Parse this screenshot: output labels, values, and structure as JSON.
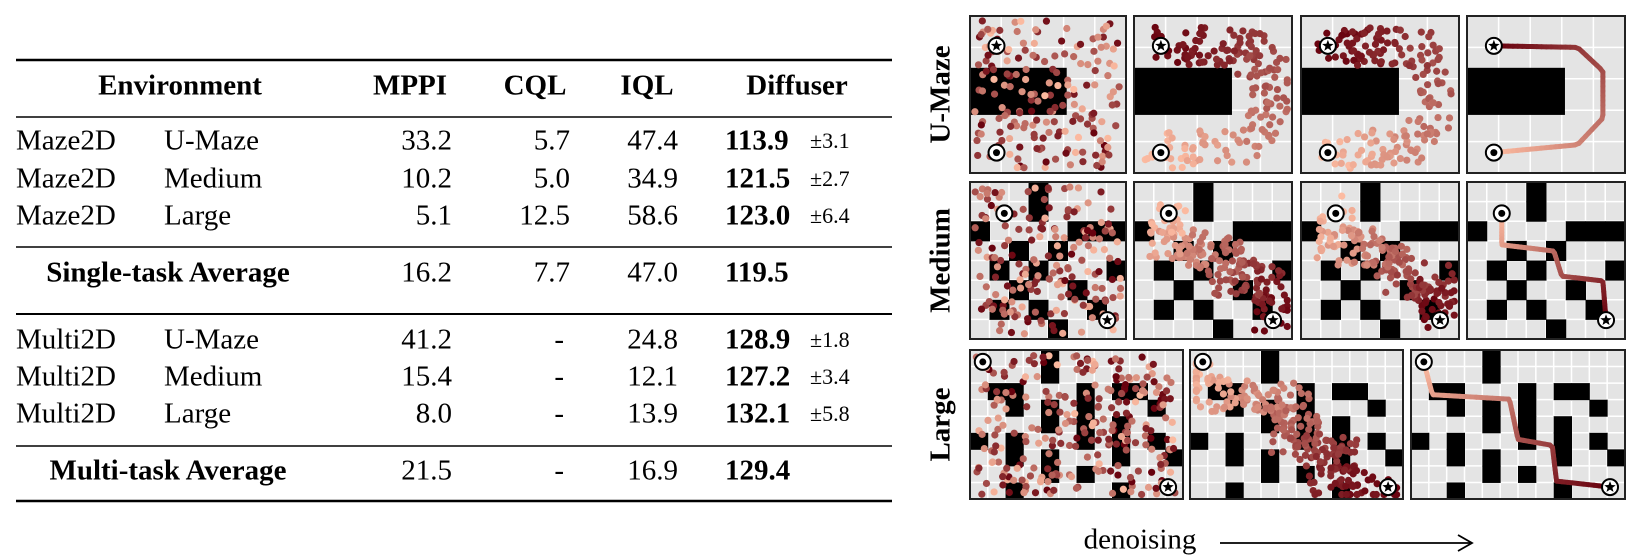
{
  "table": {
    "header": [
      "Environment",
      "MPPI",
      "CQL",
      "IQL",
      "Diffuser"
    ],
    "sections": [
      {
        "rows": [
          [
            "Maze2D",
            "U-Maze",
            "33.2",
            "5.7",
            "47.4",
            "113.9",
            "±3.1"
          ],
          [
            "Maze2D",
            "Medium",
            "10.2",
            "5.0",
            "34.9",
            "121.5",
            "±2.7"
          ],
          [
            "Maze2D",
            "Large",
            "5.1",
            "12.5",
            "58.6",
            "123.0",
            "±6.4"
          ]
        ],
        "average": [
          "Single-task Average",
          "16.2",
          "7.7",
          "47.0",
          "119.5"
        ]
      },
      {
        "rows": [
          [
            "Multi2D",
            "U-Maze",
            "41.2",
            "-",
            "24.8",
            "128.9",
            "±1.8"
          ],
          [
            "Multi2D",
            "Medium",
            "15.4",
            "-",
            "12.1",
            "127.2",
            "±3.4"
          ],
          [
            "Multi2D",
            "Large",
            "8.0",
            "-",
            "13.9",
            "132.1",
            "±5.8"
          ]
        ],
        "average": [
          "Multi-task Average",
          "21.5",
          "-",
          "16.9",
          "129.4"
        ]
      }
    ]
  },
  "figure": {
    "row_labels": [
      "U-Maze",
      "Medium",
      "Large"
    ],
    "xlabel": "denoising"
  }
}
